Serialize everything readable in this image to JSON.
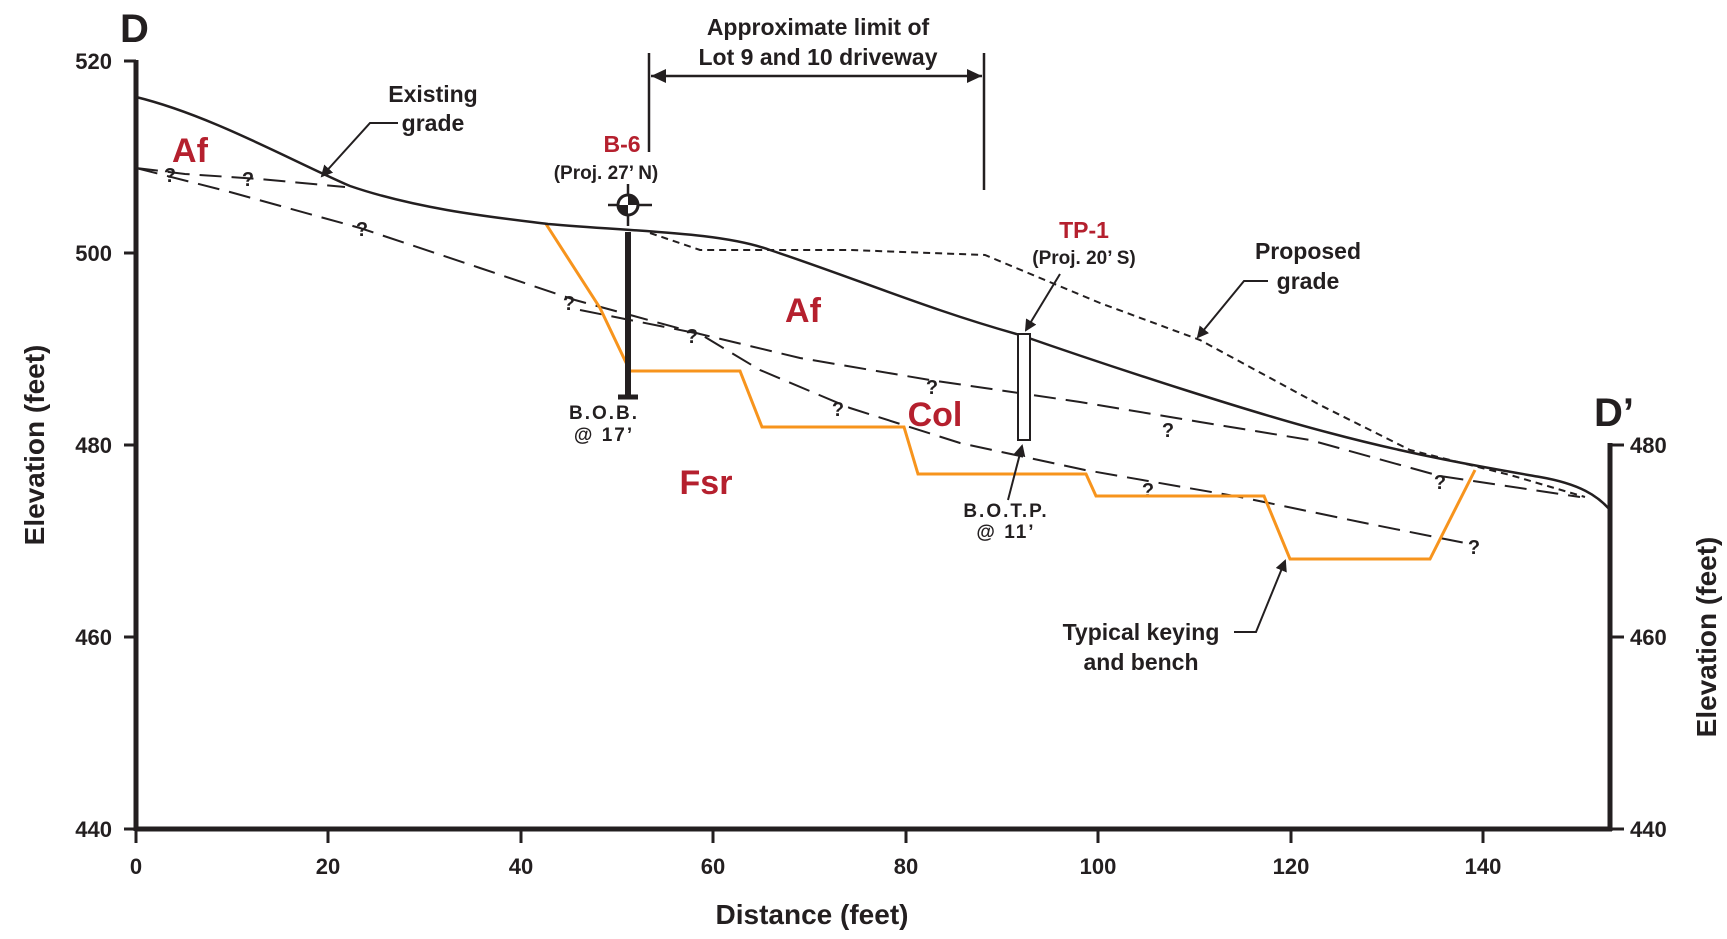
{
  "section": {
    "left_label": "D",
    "right_label": "D’"
  },
  "axes": {
    "x_title": "Distance (feet)",
    "y_title_left": "Elevation (feet)",
    "y_title_right": "Elevation (feet)",
    "x_ticks": [
      "0",
      "20",
      "40",
      "60",
      "80",
      "100",
      "120",
      "140"
    ],
    "y_ticks_left": [
      "520",
      "500",
      "480",
      "460",
      "440"
    ],
    "y_ticks_right": [
      "480",
      "460",
      "440"
    ]
  },
  "units": {
    "af_top": "Af",
    "af_mid": "Af",
    "col": "Col",
    "fsr": "Fsr",
    "unit_color": "#b5202e"
  },
  "borings": {
    "b6_name": "B-6",
    "b6_proj": "(Proj. 27’ N)",
    "b6_bottom_1": "B.O.B.",
    "b6_bottom_2": "@ 17’",
    "tp1_name": "TP-1",
    "tp1_proj": "(Proj. 20’ S)",
    "tp1_bottom_1": "B.O.T.P.",
    "tp1_bottom_2": "@ 11’",
    "label_color": "#b5202e"
  },
  "annotations": {
    "driveway_1": "Approximate limit of",
    "driveway_2": "Lot 9 and 10 driveway",
    "existing_1": "Existing",
    "existing_2": "grade",
    "proposed_1": "Proposed",
    "proposed_2": "grade",
    "keying_1": "Typical keying",
    "keying_2": "and bench",
    "query": "?"
  },
  "colors": {
    "line": "#231f20",
    "bench": "#f7941d"
  }
}
